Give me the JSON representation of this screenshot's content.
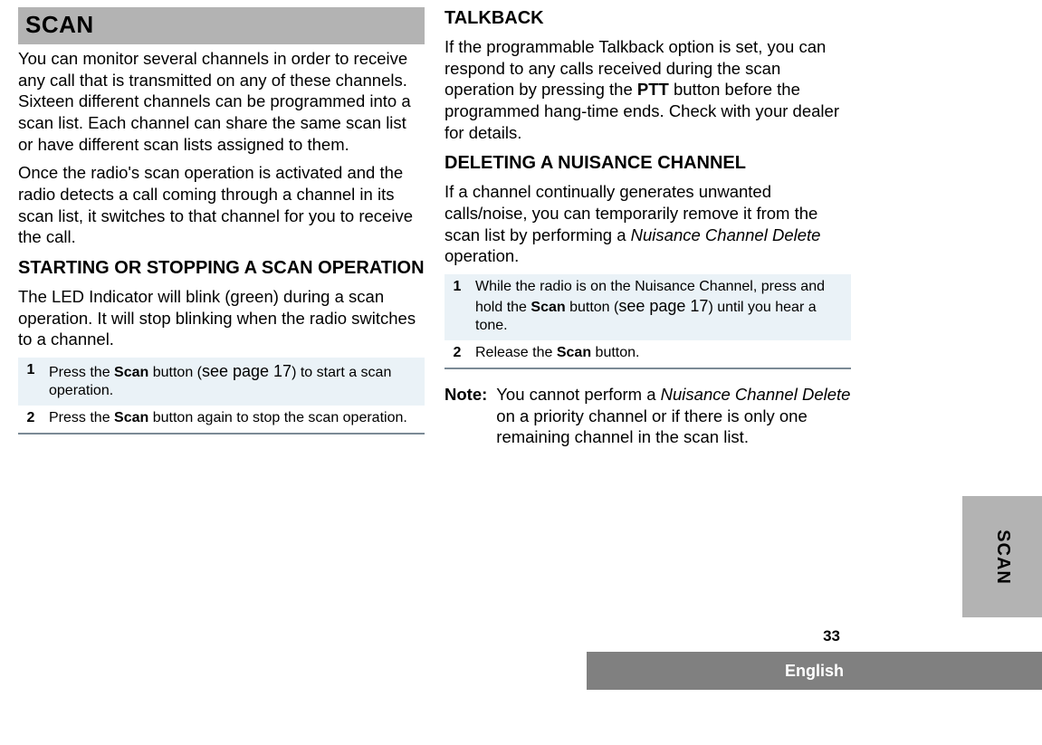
{
  "sideTab": "SCAN",
  "pageNumber": "33",
  "language": "English",
  "col1": {
    "headerBar": "SCAN",
    "p1": "You can monitor several channels in order to receive any call that is transmitted on any of these channels. Sixteen different channels can be programmed into a scan list. Each channel can share the same scan list or have different scan lists assigned to them.",
    "p2": "Once the radio's scan operation is activated and the radio detects a call coming through a channel in its scan list, it switches to that channel for you to receive the call.",
    "h2a": "STARTING OR STOPPING A SCAN OPERATION",
    "p3": "The LED Indicator will blink (green) during a scan operation. It will stop blinking when the radio switches to a channel.",
    "steps": {
      "r1num": "1",
      "r1a": "Press the ",
      "r1b": "Scan",
      "r1c": " button (",
      "r1d": "see page 17",
      "r1e": ") to start a scan operation.",
      "r2num": "2",
      "r2a": "Press the ",
      "r2b": "Scan",
      "r2c": " button again to stop the scan operation."
    }
  },
  "col2": {
    "h2a": "TALKBACK",
    "p1a": "If the programmable Talkback option is set, you can respond to any calls received during the scan operation by pressing the ",
    "p1b": "PTT",
    "p1c": " button before the programmed hang-time ends. Check with your dealer for details.",
    "h2b": "DELETING A NUISANCE CHANNEL",
    "p2a": "If a channel continually generates unwanted calls/noise, you can temporarily remove it from the scan list by performing a ",
    "p2b": "Nuisance Channel Delete",
    "p2c": " operation.",
    "steps": {
      "r1num": "1",
      "r1a": "While the radio is on the Nuisance Channel, press and hold the ",
      "r1b": "Scan",
      "r1c": " button (",
      "r1d": "see page 17",
      "r1e": ") until you hear a tone.",
      "r2num": "2",
      "r2a": "Release the ",
      "r2b": "Scan",
      "r2c": " button."
    },
    "noteLabel": "Note:",
    "noteA": "You cannot perform a ",
    "noteB": "Nuisance Channel Delete",
    "noteC": " on a priority channel or if there is only one remaining channel in the scan list."
  }
}
